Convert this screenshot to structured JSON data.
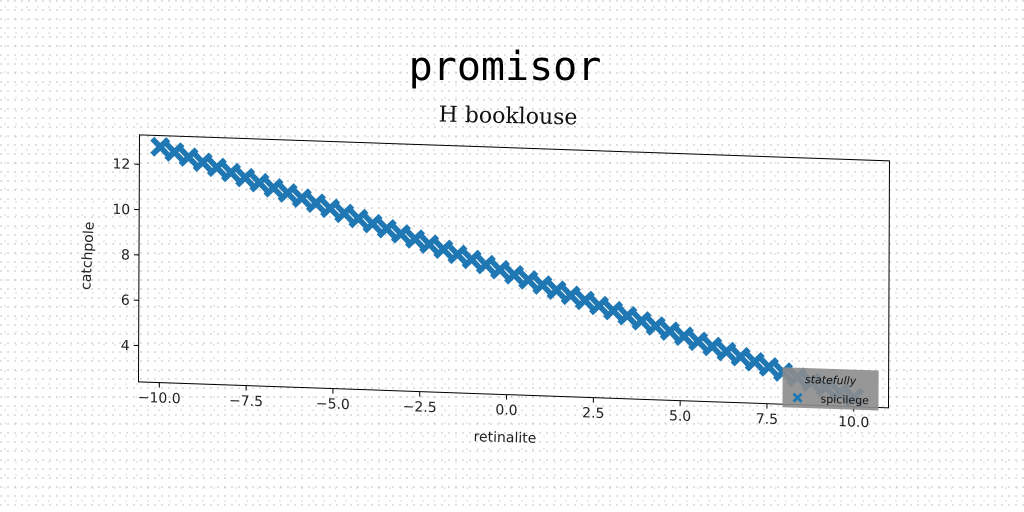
{
  "chart_data": {
    "type": "scatter",
    "title": "promisor",
    "subtitle": "H booklouse",
    "xlabel": "retinalite",
    "ylabel": "catchpole",
    "xlim": [
      -10.6,
      11.0
    ],
    "ylim": [
      2.4,
      13.3
    ],
    "xticks": [
      -10.0,
      -7.5,
      -5.0,
      -2.5,
      0.0,
      2.5,
      5.0,
      7.5,
      10.0
    ],
    "xtick_labels": [
      "−10.0",
      "−7.5",
      "−5.0",
      "−2.5",
      "0.0",
      "2.5",
      "5.0",
      "7.5",
      "10.0"
    ],
    "yticks": [
      4,
      6,
      8,
      10,
      12
    ],
    "ytick_labels": [
      "4",
      "6",
      "8",
      "10",
      "12"
    ],
    "grid": false,
    "legend": {
      "title": "statefully",
      "position": "lower-right"
    },
    "series": [
      {
        "name": "spicilege",
        "marker": "X",
        "color": "#1f77b4",
        "x_start": -10.0,
        "x_end": 10.0,
        "n_points": 50,
        "y_start": 12.8,
        "y_end": 2.8
      }
    ]
  }
}
